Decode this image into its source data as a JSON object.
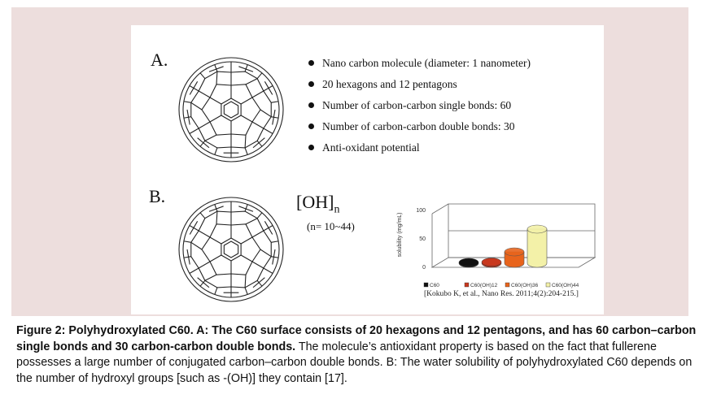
{
  "figure": {
    "panel_a": {
      "letter": "A.",
      "bullets": [
        "Nano carbon molecule (diameter:  1 nanometer)",
        "20 hexagons  and 12 pentagons",
        "Number of carbon-carbon single bonds:  60",
        "Number of carbon-carbon double bonds:  30",
        "Anti-oxidant potential"
      ]
    },
    "panel_b": {
      "letter": "B.",
      "formula_main": "[OH]",
      "formula_sub": "n",
      "range": "(n= 10~44)",
      "citation": "[Kokubo K, et al., Nano Res. 2011;4(2):204-215.]"
    }
  },
  "chart_data": {
    "type": "bar",
    "ylabel": "solubility (mg/mL)",
    "ylim": [
      0,
      100
    ],
    "yticks": [
      "0",
      "50",
      "100"
    ],
    "categories": [
      "C60",
      "C60(OH)12",
      "C60(OH)36",
      "C60(OH)44"
    ],
    "values": [
      0,
      2,
      20,
      60
    ],
    "colors": [
      "#111111",
      "#c8381e",
      "#e8641c",
      "#f3f1a8"
    ]
  },
  "caption": {
    "bold": "Figure 2: Polyhydroxylated C60. A: The C60 surface consists of 20 hexagons and 12 pentagons, and has 60 carbon–carbon single bonds and 30 carbon-carbon double bonds.",
    "normal": " The molecule’s antioxidant property is based on the fact that fullerene possesses a large number of conjugated carbon–carbon double bonds. B: The water solubility of polyhydroxylated C60 depends on the number of hydroxyl groups [such as -(OH)] they contain [17]."
  }
}
